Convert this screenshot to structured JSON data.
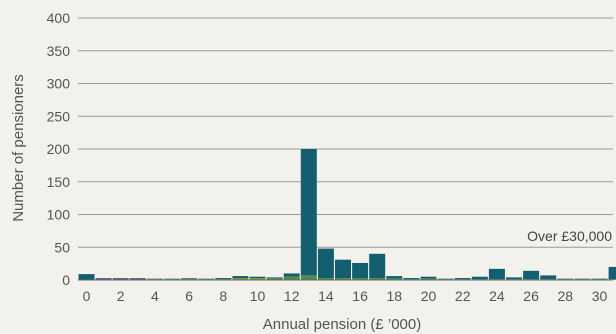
{
  "chart_data": {
    "type": "bar",
    "xlabel": "Annual pension (£ ’000)",
    "ylabel": "Number of pensioners",
    "ylim": [
      0,
      400
    ],
    "yticks": [
      0,
      50,
      100,
      150,
      200,
      250,
      300,
      350,
      400
    ],
    "xticks": [
      "0",
      "2",
      "4",
      "6",
      "8",
      "10",
      "12",
      "14",
      "16",
      "18",
      "20",
      "22",
      "24",
      "26",
      "28",
      "30"
    ],
    "grid": true,
    "annotation": "Over £30,000",
    "colors": {
      "dark": "#12606f",
      "purple": "#8c4a86",
      "olive": "#7a9440",
      "green": "#4f8a4c"
    },
    "bins": [
      {
        "x": 0,
        "total": 9,
        "lower": 0,
        "lower_color": "purple"
      },
      {
        "x": 1,
        "total": 3,
        "lower": 2,
        "lower_color": "purple"
      },
      {
        "x": 2,
        "total": 3,
        "lower": 2,
        "lower_color": "purple"
      },
      {
        "x": 3,
        "total": 3,
        "lower": 2,
        "lower_color": "purple"
      },
      {
        "x": 4,
        "total": 2,
        "lower": 1,
        "lower_color": "olive"
      },
      {
        "x": 5,
        "total": 2,
        "lower": 1,
        "lower_color": "olive"
      },
      {
        "x": 6,
        "total": 3,
        "lower": 2,
        "lower_color": "olive"
      },
      {
        "x": 7,
        "total": 2,
        "lower": 1,
        "lower_color": "olive"
      },
      {
        "x": 8,
        "total": 3,
        "lower": 1,
        "lower_color": "olive"
      },
      {
        "x": 9,
        "total": 6,
        "lower": 3,
        "lower_color": "olive"
      },
      {
        "x": 10,
        "total": 5,
        "lower": 3,
        "lower_color": "olive"
      },
      {
        "x": 11,
        "total": 4,
        "lower": 3,
        "lower_color": "green"
      },
      {
        "x": 12,
        "total": 10,
        "lower": 5,
        "lower_color": "green"
      },
      {
        "x": 13,
        "total": 200,
        "lower": 7,
        "lower_color": "green"
      },
      {
        "x": 14,
        "total": 48,
        "lower": 3,
        "lower_color": "green"
      },
      {
        "x": 15,
        "total": 31,
        "lower": 3,
        "lower_color": "green"
      },
      {
        "x": 16,
        "total": 26,
        "lower": 3,
        "lower_color": "green"
      },
      {
        "x": 17,
        "total": 40,
        "lower": 3,
        "lower_color": "green"
      },
      {
        "x": 18,
        "total": 6,
        "lower": 2,
        "lower_color": "green"
      },
      {
        "x": 19,
        "total": 3,
        "lower": 1,
        "lower_color": "green"
      },
      {
        "x": 20,
        "total": 5,
        "lower": 2,
        "lower_color": "green"
      },
      {
        "x": 21,
        "total": 2,
        "lower": 1,
        "lower_color": "green"
      },
      {
        "x": 22,
        "total": 3,
        "lower": 1,
        "lower_color": "green"
      },
      {
        "x": 23,
        "total": 5,
        "lower": 1,
        "lower_color": "green"
      },
      {
        "x": 24,
        "total": 17,
        "lower": 1,
        "lower_color": "green"
      },
      {
        "x": 25,
        "total": 4,
        "lower": 1,
        "lower_color": "green"
      },
      {
        "x": 26,
        "total": 14,
        "lower": 1,
        "lower_color": "green"
      },
      {
        "x": 27,
        "total": 7,
        "lower": 1,
        "lower_color": "green"
      },
      {
        "x": 28,
        "total": 2,
        "lower": 1,
        "lower_color": "green"
      },
      {
        "x": 29,
        "total": 2,
        "lower": 1,
        "lower_color": "green"
      },
      {
        "x": 30,
        "total": 2,
        "lower": 1,
        "lower_color": "green"
      },
      {
        "x": 31,
        "total": 20,
        "lower": 1,
        "lower_color": "green"
      }
    ]
  }
}
